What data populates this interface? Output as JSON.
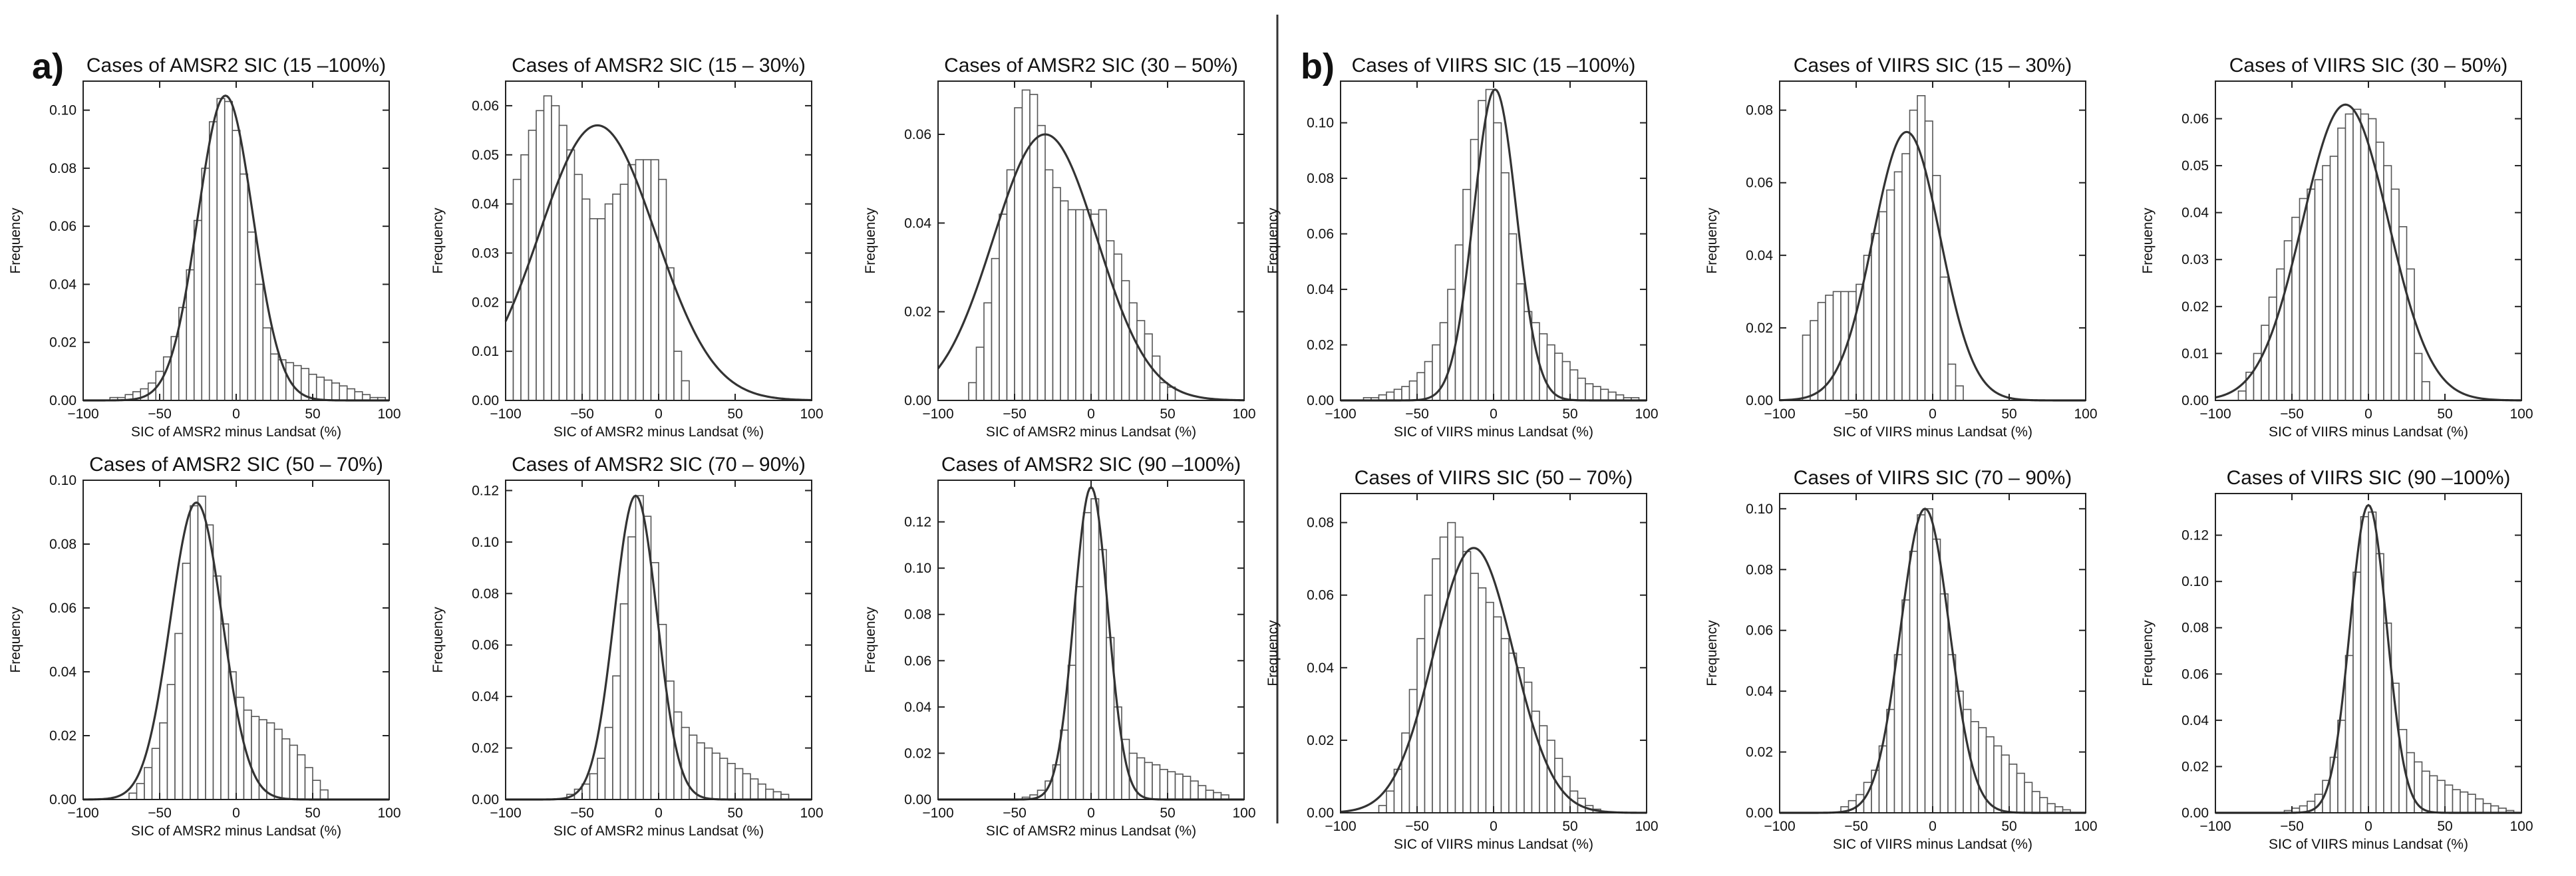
{
  "figure": {
    "panels": [
      {
        "letter": "a)"
      },
      {
        "letter": "b)"
      }
    ]
  },
  "chart_data": [
    {
      "type": "bar",
      "title": "Cases of AMSR2 SIC (15 –100%)",
      "xlabel": "SIC of AMSR2 minus Landsat (%)",
      "ylabel": "Frequency",
      "xlim": [
        -100,
        100
      ],
      "ylim": [
        0,
        0.11
      ],
      "xticks": [
        -100,
        -50,
        0,
        50,
        100
      ],
      "yticks": [
        0.0,
        0.02,
        0.04,
        0.06,
        0.08,
        0.1
      ],
      "bin_width": 5,
      "bins_x": [
        -95,
        -90,
        -85,
        -80,
        -75,
        -70,
        -65,
        -60,
        -55,
        -50,
        -45,
        -40,
        -35,
        -30,
        -25,
        -20,
        -15,
        -10,
        -5,
        0,
        5,
        10,
        15,
        20,
        25,
        30,
        35,
        40,
        45,
        50,
        55,
        60,
        65,
        70,
        75,
        80,
        85,
        90,
        95
      ],
      "values": [
        0.0,
        0.0,
        0.0,
        0.001,
        0.001,
        0.002,
        0.003,
        0.004,
        0.006,
        0.01,
        0.015,
        0.022,
        0.032,
        0.045,
        0.062,
        0.08,
        0.096,
        0.104,
        0.103,
        0.093,
        0.078,
        0.058,
        0.04,
        0.025,
        0.016,
        0.014,
        0.013,
        0.012,
        0.011,
        0.009,
        0.008,
        0.007,
        0.006,
        0.005,
        0.004,
        0.003,
        0.002,
        0.001,
        0.001
      ],
      "fit_curve": {
        "mean": -7,
        "sd": 18,
        "peak": 0.105
      }
    },
    {
      "type": "bar",
      "title": "Cases of AMSR2 SIC (15 – 30%)",
      "xlabel": "SIC of AMSR2 minus Landsat (%)",
      "ylabel": "Frequency",
      "xlim": [
        -100,
        100
      ],
      "ylim": [
        0,
        0.065
      ],
      "xticks": [
        -100,
        -50,
        0,
        50,
        100
      ],
      "yticks": [
        0.0,
        0.01,
        0.02,
        0.03,
        0.04,
        0.05,
        0.06
      ],
      "bin_width": 5,
      "bins_x": [
        -97.5,
        -92.5,
        -87.5,
        -82.5,
        -77.5,
        -72.5,
        -67.5,
        -62.5,
        -57.5,
        -52.5,
        -47.5,
        -42.5,
        -37.5,
        -32.5,
        -27.5,
        -22.5,
        -17.5,
        -12.5,
        -7.5,
        -2.5,
        2.5,
        7.5,
        12.5,
        17.5
      ],
      "values": [
        0.04,
        0.045,
        0.05,
        0.055,
        0.059,
        0.062,
        0.06,
        0.056,
        0.051,
        0.046,
        0.041,
        0.037,
        0.037,
        0.04,
        0.042,
        0.044,
        0.048,
        0.049,
        0.049,
        0.049,
        0.045,
        0.027,
        0.01,
        0.004
      ],
      "fit_curve": {
        "mean": -40,
        "sd": 38,
        "peak": 0.056
      }
    },
    {
      "type": "bar",
      "title": "Cases of AMSR2 SIC (30 – 50%)",
      "xlabel": "SIC of AMSR2 minus Landsat (%)",
      "ylabel": "Frequency",
      "xlim": [
        -100,
        100
      ],
      "ylim": [
        0,
        0.072
      ],
      "xticks": [
        -100,
        -50,
        0,
        50,
        100
      ],
      "yticks": [
        0.0,
        0.02,
        0.04,
        0.06
      ],
      "bin_width": 5,
      "bins_x": [
        -77.5,
        -72.5,
        -67.5,
        -62.5,
        -57.5,
        -52.5,
        -47.5,
        -42.5,
        -37.5,
        -32.5,
        -27.5,
        -22.5,
        -17.5,
        -12.5,
        -7.5,
        -2.5,
        2.5,
        7.5,
        12.5,
        17.5,
        22.5,
        27.5,
        32.5,
        37.5,
        42.5,
        47.5,
        52.5
      ],
      "values": [
        0.004,
        0.012,
        0.022,
        0.032,
        0.042,
        0.052,
        0.066,
        0.07,
        0.069,
        0.062,
        0.052,
        0.048,
        0.045,
        0.043,
        0.043,
        0.043,
        0.042,
        0.043,
        0.036,
        0.033,
        0.027,
        0.022,
        0.018,
        0.015,
        0.01,
        0.004,
        0.003
      ],
      "fit_curve": {
        "mean": -30,
        "sd": 34,
        "peak": 0.06
      }
    },
    {
      "type": "bar",
      "title": "Cases of VIIRS SIC (15 –100%)",
      "xlabel": "SIC of VIIRS minus Landsat (%)",
      "ylabel": "Frequency",
      "xlim": [
        -100,
        100
      ],
      "ylim": [
        0,
        0.115
      ],
      "xticks": [
        -100,
        -50,
        0,
        50,
        100
      ],
      "yticks": [
        0.0,
        0.02,
        0.04,
        0.06,
        0.08,
        0.1
      ],
      "bin_width": 5,
      "bins_x": [
        -97.5,
        -92.5,
        -87.5,
        -82.5,
        -77.5,
        -72.5,
        -67.5,
        -62.5,
        -57.5,
        -52.5,
        -47.5,
        -42.5,
        -37.5,
        -32.5,
        -27.5,
        -22.5,
        -17.5,
        -12.5,
        -7.5,
        -2.5,
        2.5,
        7.5,
        12.5,
        17.5,
        22.5,
        27.5,
        32.5,
        37.5,
        42.5,
        47.5,
        52.5,
        57.5,
        62.5,
        67.5,
        72.5,
        77.5,
        82.5,
        87.5,
        92.5
      ],
      "values": [
        0.0,
        0.0,
        0.0,
        0.001,
        0.001,
        0.002,
        0.003,
        0.004,
        0.005,
        0.007,
        0.01,
        0.014,
        0.02,
        0.028,
        0.04,
        0.056,
        0.076,
        0.094,
        0.108,
        0.112,
        0.1,
        0.082,
        0.06,
        0.042,
        0.032,
        0.028,
        0.024,
        0.02,
        0.017,
        0.014,
        0.011,
        0.008,
        0.006,
        0.005,
        0.004,
        0.003,
        0.002,
        0.001,
        0.001
      ],
      "fit_curve": {
        "mean": 1,
        "sd": 14,
        "peak": 0.112
      }
    },
    {
      "type": "bar",
      "title": "Cases of VIIRS SIC (15 – 30%)",
      "xlabel": "SIC of VIIRS minus Landsat (%)",
      "ylabel": "Frequency",
      "xlim": [
        -100,
        100
      ],
      "ylim": [
        0,
        0.088
      ],
      "xticks": [
        -100,
        -50,
        0,
        50,
        100
      ],
      "yticks": [
        0.0,
        0.02,
        0.04,
        0.06,
        0.08
      ],
      "bin_width": 5,
      "bins_x": [
        -82.5,
        -77.5,
        -72.5,
        -67.5,
        -62.5,
        -57.5,
        -52.5,
        -47.5,
        -42.5,
        -37.5,
        -32.5,
        -27.5,
        -22.5,
        -17.5,
        -12.5,
        -7.5,
        -2.5,
        2.5,
        7.5,
        12.5,
        17.5
      ],
      "values": [
        0.018,
        0.022,
        0.027,
        0.029,
        0.03,
        0.03,
        0.03,
        0.032,
        0.04,
        0.046,
        0.052,
        0.058,
        0.063,
        0.068,
        0.08,
        0.084,
        0.077,
        0.062,
        0.034,
        0.01,
        0.004
      ],
      "fit_curve": {
        "mean": -17,
        "sd": 22,
        "peak": 0.074
      }
    },
    {
      "type": "bar",
      "title": "Cases of VIIRS SIC (30 – 50%)",
      "xlabel": "SIC of VIIRS minus Landsat (%)",
      "ylabel": "Frequency",
      "xlim": [
        -100,
        100
      ],
      "ylim": [
        0,
        0.068
      ],
      "xticks": [
        -100,
        -50,
        0,
        50,
        100
      ],
      "yticks": [
        0.0,
        0.01,
        0.02,
        0.03,
        0.04,
        0.05,
        0.06
      ],
      "bin_width": 5,
      "bins_x": [
        -82.5,
        -77.5,
        -72.5,
        -67.5,
        -62.5,
        -57.5,
        -52.5,
        -47.5,
        -42.5,
        -37.5,
        -32.5,
        -27.5,
        -22.5,
        -17.5,
        -12.5,
        -7.5,
        -2.5,
        2.5,
        7.5,
        12.5,
        17.5,
        22.5,
        27.5,
        32.5,
        37.5
      ],
      "values": [
        0.002,
        0.006,
        0.01,
        0.016,
        0.022,
        0.028,
        0.034,
        0.039,
        0.043,
        0.045,
        0.047,
        0.05,
        0.052,
        0.058,
        0.061,
        0.062,
        0.061,
        0.06,
        0.055,
        0.05,
        0.045,
        0.037,
        0.028,
        0.01,
        0.004
      ],
      "fit_curve": {
        "mean": -15,
        "sd": 28,
        "peak": 0.063
      }
    },
    {
      "type": "bar",
      "title": "Cases of AMSR2 SIC (50 – 70%)",
      "xlabel": "SIC of AMSR2 minus Landsat (%)",
      "ylabel": "Frequency",
      "xlim": [
        -100,
        100
      ],
      "ylim": [
        0,
        0.1
      ],
      "xticks": [
        -100,
        -50,
        0,
        50,
        100
      ],
      "yticks": [
        0.0,
        0.02,
        0.04,
        0.06,
        0.08,
        0.1
      ],
      "bin_width": 5,
      "bins_x": [
        -67.5,
        -62.5,
        -57.5,
        -52.5,
        -47.5,
        -42.5,
        -37.5,
        -32.5,
        -27.5,
        -22.5,
        -17.5,
        -12.5,
        -7.5,
        -2.5,
        2.5,
        7.5,
        12.5,
        17.5,
        22.5,
        27.5,
        32.5,
        37.5,
        42.5,
        47.5,
        52.5,
        57.5
      ],
      "values": [
        0.002,
        0.005,
        0.01,
        0.016,
        0.024,
        0.036,
        0.052,
        0.074,
        0.092,
        0.095,
        0.086,
        0.07,
        0.055,
        0.04,
        0.032,
        0.028,
        0.026,
        0.025,
        0.024,
        0.022,
        0.019,
        0.017,
        0.014,
        0.01,
        0.006,
        0.003
      ],
      "fit_curve": {
        "mean": -26,
        "sd": 17,
        "peak": 0.093
      }
    },
    {
      "type": "bar",
      "title": "Cases of AMSR2 SIC (70 – 90%)",
      "xlabel": "SIC of AMSR2 minus Landsat (%)",
      "ylabel": "Frequency",
      "xlim": [
        -100,
        100
      ],
      "ylim": [
        0,
        0.124
      ],
      "xticks": [
        -100,
        -50,
        0,
        50,
        100
      ],
      "yticks": [
        0.0,
        0.02,
        0.04,
        0.06,
        0.08,
        0.1,
        0.12
      ],
      "bin_width": 5,
      "bins_x": [
        -57.5,
        -52.5,
        -47.5,
        -42.5,
        -37.5,
        -32.5,
        -27.5,
        -22.5,
        -17.5,
        -12.5,
        -7.5,
        -2.5,
        2.5,
        7.5,
        12.5,
        17.5,
        22.5,
        27.5,
        32.5,
        37.5,
        42.5,
        47.5,
        52.5,
        57.5,
        62.5,
        67.5,
        72.5,
        77.5,
        82.5
      ],
      "values": [
        0.002,
        0.004,
        0.006,
        0.01,
        0.016,
        0.028,
        0.048,
        0.076,
        0.102,
        0.118,
        0.11,
        0.092,
        0.068,
        0.046,
        0.034,
        0.028,
        0.025,
        0.022,
        0.02,
        0.018,
        0.016,
        0.014,
        0.012,
        0.01,
        0.008,
        0.006,
        0.004,
        0.003,
        0.002
      ],
      "fit_curve": {
        "mean": -15,
        "sd": 14,
        "peak": 0.118
      }
    },
    {
      "type": "bar",
      "title": "Cases of AMSR2 SIC (90 –100%)",
      "xlabel": "SIC of AMSR2 minus Landsat (%)",
      "ylabel": "Frequency",
      "xlim": [
        -100,
        100
      ],
      "ylim": [
        0,
        0.138
      ],
      "xticks": [
        -100,
        -50,
        0,
        50,
        100
      ],
      "yticks": [
        0.0,
        0.02,
        0.04,
        0.06,
        0.08,
        0.1,
        0.12
      ],
      "bin_width": 5,
      "bins_x": [
        -42.5,
        -37.5,
        -32.5,
        -27.5,
        -22.5,
        -17.5,
        -12.5,
        -7.5,
        -2.5,
        2.5,
        7.5,
        12.5,
        17.5,
        22.5,
        27.5,
        32.5,
        37.5,
        42.5,
        47.5,
        52.5,
        57.5,
        62.5,
        67.5,
        72.5,
        77.5,
        82.5,
        87.5
      ],
      "values": [
        0.001,
        0.002,
        0.004,
        0.008,
        0.015,
        0.03,
        0.058,
        0.092,
        0.124,
        0.13,
        0.108,
        0.07,
        0.04,
        0.026,
        0.02,
        0.018,
        0.016,
        0.015,
        0.013,
        0.012,
        0.011,
        0.01,
        0.008,
        0.006,
        0.004,
        0.003,
        0.002
      ],
      "fit_curve": {
        "mean": 0,
        "sd": 11,
        "peak": 0.135
      }
    },
    {
      "type": "bar",
      "title": "Cases of VIIRS SIC (50 – 70%)",
      "xlabel": "SIC of VIIRS minus Landsat (%)",
      "ylabel": "Frequency",
      "xlim": [
        -100,
        100
      ],
      "ylim": [
        0,
        0.088
      ],
      "xticks": [
        -100,
        -50,
        0,
        50,
        100
      ],
      "yticks": [
        0.0,
        0.02,
        0.04,
        0.06,
        0.08
      ],
      "bin_width": 5,
      "bins_x": [
        -72.5,
        -67.5,
        -62.5,
        -57.5,
        -52.5,
        -47.5,
        -42.5,
        -37.5,
        -32.5,
        -27.5,
        -22.5,
        -17.5,
        -12.5,
        -7.5,
        -2.5,
        2.5,
        7.5,
        12.5,
        17.5,
        22.5,
        27.5,
        32.5,
        37.5,
        42.5,
        47.5,
        52.5,
        57.5,
        62.5,
        67.5
      ],
      "values": [
        0.002,
        0.006,
        0.012,
        0.022,
        0.034,
        0.048,
        0.06,
        0.07,
        0.076,
        0.08,
        0.076,
        0.072,
        0.066,
        0.062,
        0.058,
        0.054,
        0.048,
        0.044,
        0.04,
        0.036,
        0.028,
        0.024,
        0.02,
        0.015,
        0.01,
        0.006,
        0.004,
        0.002,
        0.001
      ],
      "fit_curve": {
        "mean": -13,
        "sd": 26,
        "peak": 0.073
      }
    },
    {
      "type": "bar",
      "title": "Cases of VIIRS SIC (70 – 90%)",
      "xlabel": "SIC of VIIRS minus Landsat (%)",
      "ylabel": "Frequency",
      "xlim": [
        -100,
        100
      ],
      "ylim": [
        0,
        0.105
      ],
      "xticks": [
        -100,
        -50,
        0,
        50,
        100
      ],
      "yticks": [
        0.0,
        0.02,
        0.04,
        0.06,
        0.08,
        0.1
      ],
      "bin_width": 5,
      "bins_x": [
        -57.5,
        -52.5,
        -47.5,
        -42.5,
        -37.5,
        -32.5,
        -27.5,
        -22.5,
        -17.5,
        -12.5,
        -7.5,
        -2.5,
        2.5,
        7.5,
        12.5,
        17.5,
        22.5,
        27.5,
        32.5,
        37.5,
        42.5,
        47.5,
        52.5,
        57.5,
        62.5,
        67.5,
        72.5,
        77.5,
        82.5,
        87.5
      ],
      "values": [
        0.002,
        0.004,
        0.006,
        0.01,
        0.014,
        0.022,
        0.034,
        0.052,
        0.07,
        0.086,
        0.098,
        0.1,
        0.09,
        0.072,
        0.052,
        0.04,
        0.034,
        0.03,
        0.028,
        0.025,
        0.022,
        0.019,
        0.016,
        0.013,
        0.01,
        0.007,
        0.005,
        0.003,
        0.002,
        0.001
      ],
      "fit_curve": {
        "mean": -5,
        "sd": 16,
        "peak": 0.1
      }
    },
    {
      "type": "bar",
      "title": "Cases of VIIRS SIC (90 –100%)",
      "xlabel": "SIC of VIIRS minus Landsat (%)",
      "ylabel": "Frequency",
      "xlim": [
        -100,
        100
      ],
      "ylim": [
        0,
        0.138
      ],
      "xticks": [
        -100,
        -50,
        0,
        50,
        100
      ],
      "yticks": [
        0.0,
        0.02,
        0.04,
        0.06,
        0.08,
        0.1,
        0.12
      ],
      "bin_width": 5,
      "bins_x": [
        -52.5,
        -47.5,
        -42.5,
        -37.5,
        -32.5,
        -27.5,
        -22.5,
        -17.5,
        -12.5,
        -7.5,
        -2.5,
        2.5,
        7.5,
        12.5,
        17.5,
        22.5,
        27.5,
        32.5,
        37.5,
        42.5,
        47.5,
        52.5,
        57.5,
        62.5,
        67.5,
        72.5,
        77.5,
        82.5,
        87.5,
        92.5
      ],
      "values": [
        0.001,
        0.002,
        0.003,
        0.005,
        0.008,
        0.014,
        0.024,
        0.04,
        0.068,
        0.104,
        0.128,
        0.13,
        0.112,
        0.082,
        0.056,
        0.036,
        0.026,
        0.022,
        0.018,
        0.016,
        0.014,
        0.012,
        0.01,
        0.009,
        0.008,
        0.006,
        0.004,
        0.003,
        0.002,
        0.001
      ],
      "fit_curve": {
        "mean": 0,
        "sd": 12,
        "peak": 0.133
      }
    }
  ]
}
